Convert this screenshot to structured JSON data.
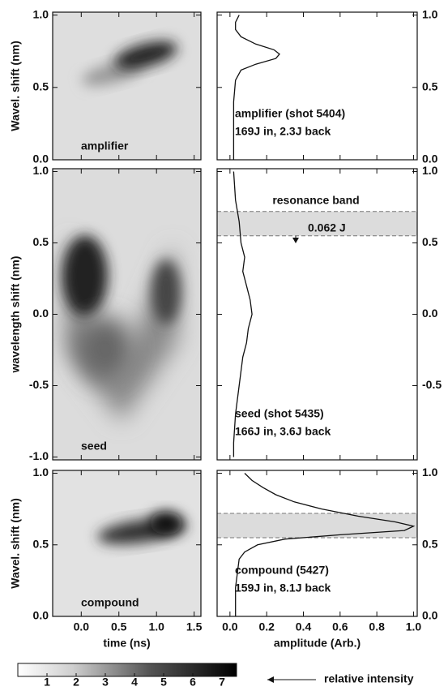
{
  "chart_data": [
    {
      "type": "image",
      "label": "amplifier",
      "ylabel": "Wavel. shift (nm)",
      "ylim": [
        0,
        1.02
      ],
      "yticks": [
        {
          "value": 0,
          "label": "0.0"
        },
        0.5,
        {
          "value": 1,
          "label": "1.0"
        }
      ]
    },
    {
      "type": "line",
      "annotations": [
        "amplifier (shot 5404)",
        "169J in, 2.3J back"
      ],
      "ylim": [
        0,
        1.02
      ],
      "yticks": [
        {
          "value": 0,
          "label": "0.0"
        },
        0.5,
        {
          "value": 1,
          "label": "1.0"
        }
      ],
      "y": [
        1.0,
        0.95,
        0.9,
        0.85,
        0.8,
        0.76,
        0.73,
        0.7,
        0.66,
        0.62,
        0.55,
        0.4,
        0.2,
        0.0
      ],
      "values": [
        0.05,
        0.03,
        0.03,
        0.06,
        0.14,
        0.24,
        0.27,
        0.25,
        0.14,
        0.06,
        0.03,
        0.02,
        0.02,
        0.02
      ],
      "color": "#111111"
    },
    {
      "type": "image",
      "label": "seed",
      "ylabel": "wavelength shift (nm)",
      "ylim": [
        -1.02,
        1.02
      ],
      "yticks": [
        {
          "value": -1,
          "label": "-1.0"
        },
        -0.5,
        {
          "value": 0,
          "label": "0.0"
        },
        0.5,
        {
          "value": 1,
          "label": "1.0"
        }
      ]
    },
    {
      "type": "line",
      "annotations": [
        "seed (shot 5435)",
        "166J in, 3.6J back"
      ],
      "band": [
        0.55,
        0.72
      ],
      "band_label": "resonance band",
      "band_energy": "0.062 J",
      "ylim": [
        -1.02,
        1.02
      ],
      "yticks": [
        -0.5,
        {
          "value": 0,
          "label": "0.0"
        },
        0.5,
        {
          "value": 1,
          "label": "1.0"
        }
      ],
      "y": [
        1.0,
        0.8,
        0.65,
        0.5,
        0.4,
        0.3,
        0.2,
        0.1,
        0.0,
        -0.1,
        -0.2,
        -0.3,
        -0.5,
        -0.7,
        -0.9,
        -1.0
      ],
      "values": [
        0.02,
        0.03,
        0.05,
        0.06,
        0.08,
        0.07,
        0.09,
        0.11,
        0.12,
        0.1,
        0.09,
        0.07,
        0.05,
        0.03,
        0.02,
        0.02
      ],
      "color": "#111111"
    },
    {
      "type": "image",
      "label": "compound",
      "ylabel": "Wavel. shift (nm)",
      "xlabel": "time (ns)",
      "xlim": [
        -0.38,
        1.59
      ],
      "xticks": [
        {
          "value": 0,
          "label": "0.0"
        },
        0.5,
        {
          "value": 1,
          "label": "1.0"
        },
        1.5
      ],
      "ylim": [
        0,
        1.02
      ],
      "yticks": [
        {
          "value": 0,
          "label": "0.0"
        },
        0.5,
        {
          "value": 1,
          "label": "1.0"
        }
      ]
    },
    {
      "type": "line",
      "annotations": [
        "compound (5427)",
        "159J in, 8.1J back"
      ],
      "xlabel": "amplitude (Arb.)",
      "band": [
        0.55,
        0.72
      ],
      "xlim": [
        -0.07,
        1.02
      ],
      "xticks": [
        {
          "value": 0,
          "label": "0.0"
        },
        0.2,
        0.4,
        0.6,
        0.8,
        {
          "value": 1,
          "label": "1.0"
        }
      ],
      "ylim": [
        0,
        1.02
      ],
      "yticks": [
        {
          "value": 0,
          "label": "0.0"
        },
        0.5,
        {
          "value": 1,
          "label": "1.0"
        }
      ],
      "y": [
        1.0,
        0.95,
        0.9,
        0.85,
        0.8,
        0.75,
        0.7,
        0.66,
        0.63,
        0.6,
        0.57,
        0.54,
        0.5,
        0.45,
        0.4,
        0.2,
        0.0
      ],
      "values": [
        0.08,
        0.12,
        0.18,
        0.25,
        0.35,
        0.5,
        0.7,
        0.9,
        1.0,
        0.95,
        0.6,
        0.3,
        0.15,
        0.08,
        0.05,
        0.03,
        0.03
      ],
      "color": "#111111"
    },
    {
      "type": "colorbar",
      "label": "relative intensity",
      "xlim": [
        0,
        7.5
      ],
      "xticks": [
        1,
        2,
        3,
        4,
        5,
        6,
        7
      ]
    }
  ]
}
